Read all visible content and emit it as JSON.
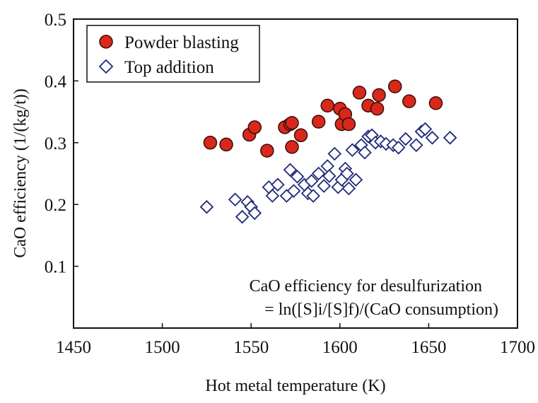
{
  "colors": {
    "axis": "#111111",
    "powder_fill": "#d8281c",
    "powder_stroke": "#3a0c08",
    "top_stroke": "#1f2a7a"
  },
  "chart_data": {
    "type": "scatter",
    "xlabel": "Hot metal temperature (K)",
    "ylabel": "CaO efficiency  (1/(kg/t))",
    "xlim": [
      1450,
      1700
    ],
    "ylim": [
      0.0,
      0.5
    ],
    "xticks": [
      1450,
      1500,
      1550,
      1600,
      1650,
      1700
    ],
    "xtick_labels": [
      "1450",
      "1500",
      "1550",
      "1600",
      "1650",
      "1700"
    ],
    "yticks": [
      0.1,
      0.2,
      0.3,
      0.4,
      0.5
    ],
    "ytick_labels": [
      "0.1",
      "0.2",
      "0.3",
      "0.4",
      "0.5"
    ],
    "grid": false,
    "legend_position": "top-left",
    "annotation": {
      "line1": "CaO efficiency for desulfurization",
      "line2": "= ln([S]i/[S]f)/(CaO consumption)"
    },
    "series": [
      {
        "name": "Powder blasting",
        "marker": "filled-circle",
        "x": [
          1527,
          1536,
          1549,
          1552,
          1559,
          1569,
          1572,
          1573,
          1573,
          1578,
          1588,
          1593,
          1600,
          1601,
          1603,
          1605,
          1611,
          1616,
          1621,
          1622,
          1631,
          1639,
          1654
        ],
        "y": [
          0.3,
          0.297,
          0.313,
          0.325,
          0.287,
          0.325,
          0.33,
          0.332,
          0.293,
          0.312,
          0.334,
          0.36,
          0.355,
          0.33,
          0.346,
          0.33,
          0.381,
          0.36,
          0.355,
          0.377,
          0.391,
          0.367,
          0.364
        ]
      },
      {
        "name": "Top addition",
        "marker": "open-diamond",
        "x": [
          1525,
          1541,
          1545,
          1548,
          1550,
          1552,
          1560,
          1562,
          1565,
          1570,
          1572,
          1574,
          1576,
          1580,
          1582,
          1584,
          1585,
          1588,
          1591,
          1593,
          1594,
          1597,
          1599,
          1601,
          1603,
          1604,
          1605,
          1607,
          1609,
          1612,
          1614,
          1616,
          1618,
          1620,
          1623,
          1626,
          1630,
          1633,
          1637,
          1643,
          1646,
          1648,
          1652,
          1662
        ],
        "y": [
          0.196,
          0.208,
          0.18,
          0.204,
          0.196,
          0.186,
          0.228,
          0.214,
          0.232,
          0.214,
          0.256,
          0.222,
          0.245,
          0.232,
          0.218,
          0.238,
          0.214,
          0.25,
          0.23,
          0.262,
          0.246,
          0.282,
          0.228,
          0.24,
          0.258,
          0.25,
          0.226,
          0.288,
          0.24,
          0.296,
          0.284,
          0.31,
          0.312,
          0.3,
          0.302,
          0.298,
          0.296,
          0.292,
          0.306,
          0.296,
          0.318,
          0.322,
          0.308,
          0.308
        ]
      }
    ]
  }
}
